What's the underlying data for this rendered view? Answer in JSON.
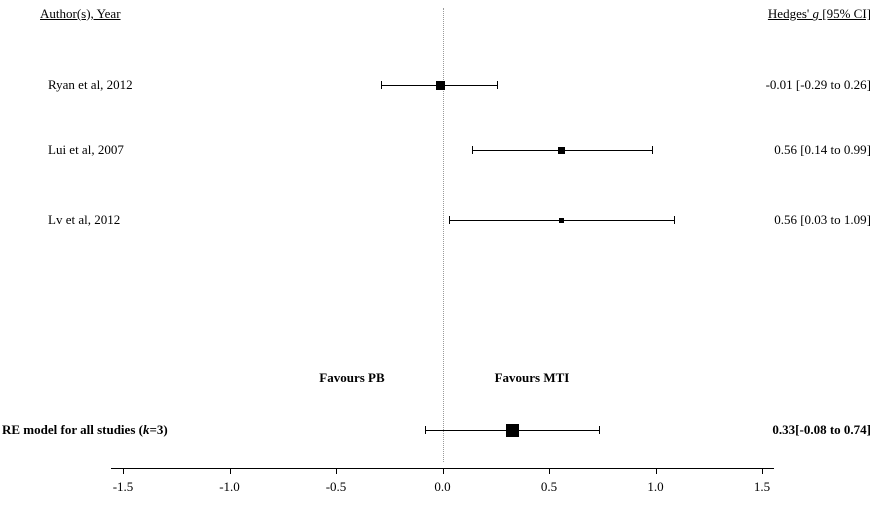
{
  "header": {
    "left": "Author(s), Year",
    "right_prefix": "Hedges' ",
    "right_italic": "g",
    "right_suffix": " [95% CI]"
  },
  "chart_data": {
    "type": "forest",
    "title": "",
    "xlabel": "",
    "xlim": [
      -1.5,
      1.5
    ],
    "x_ticks": [
      -1.5,
      -1.0,
      -0.5,
      0.0,
      0.5,
      1.0,
      1.5
    ],
    "x_tick_labels": [
      "-1.5",
      "-1.0",
      "-0.5",
      "0.0",
      "0.5",
      "1.0",
      "1.5"
    ],
    "reference_line": 0,
    "effect_measure": "Hedges' g",
    "studies": [
      {
        "label": "Ryan et al, 2012",
        "estimate": -0.01,
        "ci_low": -0.29,
        "ci_high": 0.26,
        "text": "-0.01 [-0.29 to 0.26]",
        "marker_size": 9
      },
      {
        "label": "Lui et al, 2007",
        "estimate": 0.56,
        "ci_low": 0.14,
        "ci_high": 0.99,
        "text": "0.56 [0.14 to 0.99]",
        "marker_size": 7
      },
      {
        "label": "Lv et al, 2012",
        "estimate": 0.56,
        "ci_low": 0.03,
        "ci_high": 1.09,
        "text": "0.56 [0.03 to 1.09]",
        "marker_size": 5
      }
    ],
    "summary": {
      "label_prefix": "RE model for all studies (",
      "label_italic": "k",
      "label_suffix": "=3)",
      "estimate": 0.33,
      "ci_low": -0.08,
      "ci_high": 0.74,
      "text": "0.33[-0.08 to 0.74]",
      "marker_size": 13
    },
    "annotations": [
      {
        "text": "Favours PB",
        "x": -0.425
      },
      {
        "text": "Favours MTI",
        "x": 0.42
      }
    ],
    "legend": "none",
    "grid": false
  }
}
